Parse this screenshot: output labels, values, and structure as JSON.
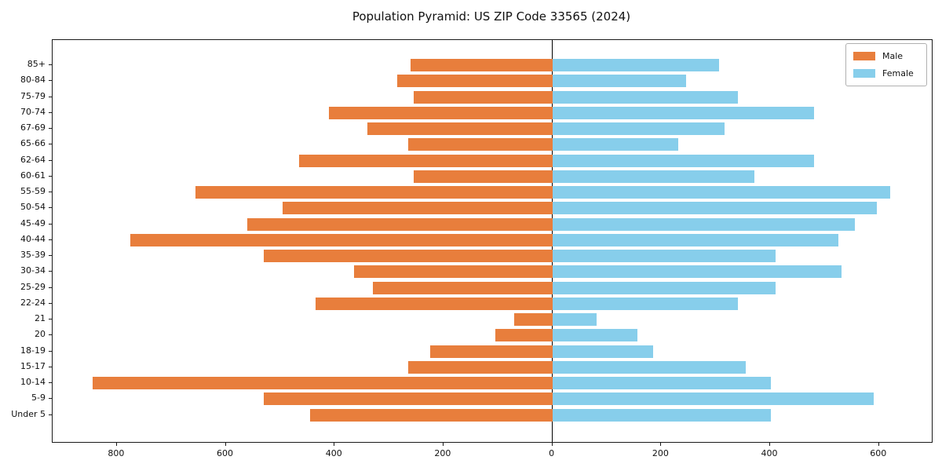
{
  "title": "Population Pyramid: US ZIP Code 33565 (2024)",
  "legend": {
    "male_label": "Male",
    "female_label": "Female",
    "position": "upper right"
  },
  "colors": {
    "male": "#E87E3C",
    "female": "#87CEEB",
    "axis": "#1a1a1a",
    "background": "#ffffff"
  },
  "chart_data": {
    "type": "bar",
    "variant": "population-pyramid",
    "title": "Population Pyramid: US ZIP Code 33565 (2024)",
    "xlabel": "",
    "ylabel": "",
    "grid": false,
    "legend_position": "upper right",
    "categories_top_to_bottom": [
      "85+",
      "80-84",
      "75-79",
      "70-74",
      "67-69",
      "65-66",
      "62-64",
      "60-61",
      "55-59",
      "50-54",
      "45-49",
      "40-44",
      "35-39",
      "30-34",
      "25-29",
      "22-24",
      "21",
      "20",
      "18-19",
      "15-17",
      "10-14",
      "5-9",
      "Under 5"
    ],
    "series": [
      {
        "name": "Male",
        "side": "left",
        "color": "#E87E3C",
        "values": [
          260,
          285,
          255,
          410,
          340,
          265,
          465,
          255,
          655,
          495,
          560,
          775,
          530,
          365,
          330,
          435,
          70,
          105,
          225,
          265,
          845,
          530,
          445
        ]
      },
      {
        "name": "Female",
        "side": "right",
        "color": "#87CEEB",
        "values": [
          305,
          245,
          340,
          480,
          315,
          230,
          480,
          370,
          620,
          595,
          555,
          525,
          410,
          530,
          410,
          340,
          80,
          155,
          185,
          355,
          400,
          590,
          400
        ]
      }
    ],
    "xlim": [
      -918,
      697
    ],
    "xticks": [
      -800,
      -600,
      -400,
      -200,
      0,
      200,
      400,
      600
    ],
    "xtick_labels": [
      "800",
      "600",
      "400",
      "200",
      "0",
      "200",
      "400",
      "600"
    ]
  }
}
